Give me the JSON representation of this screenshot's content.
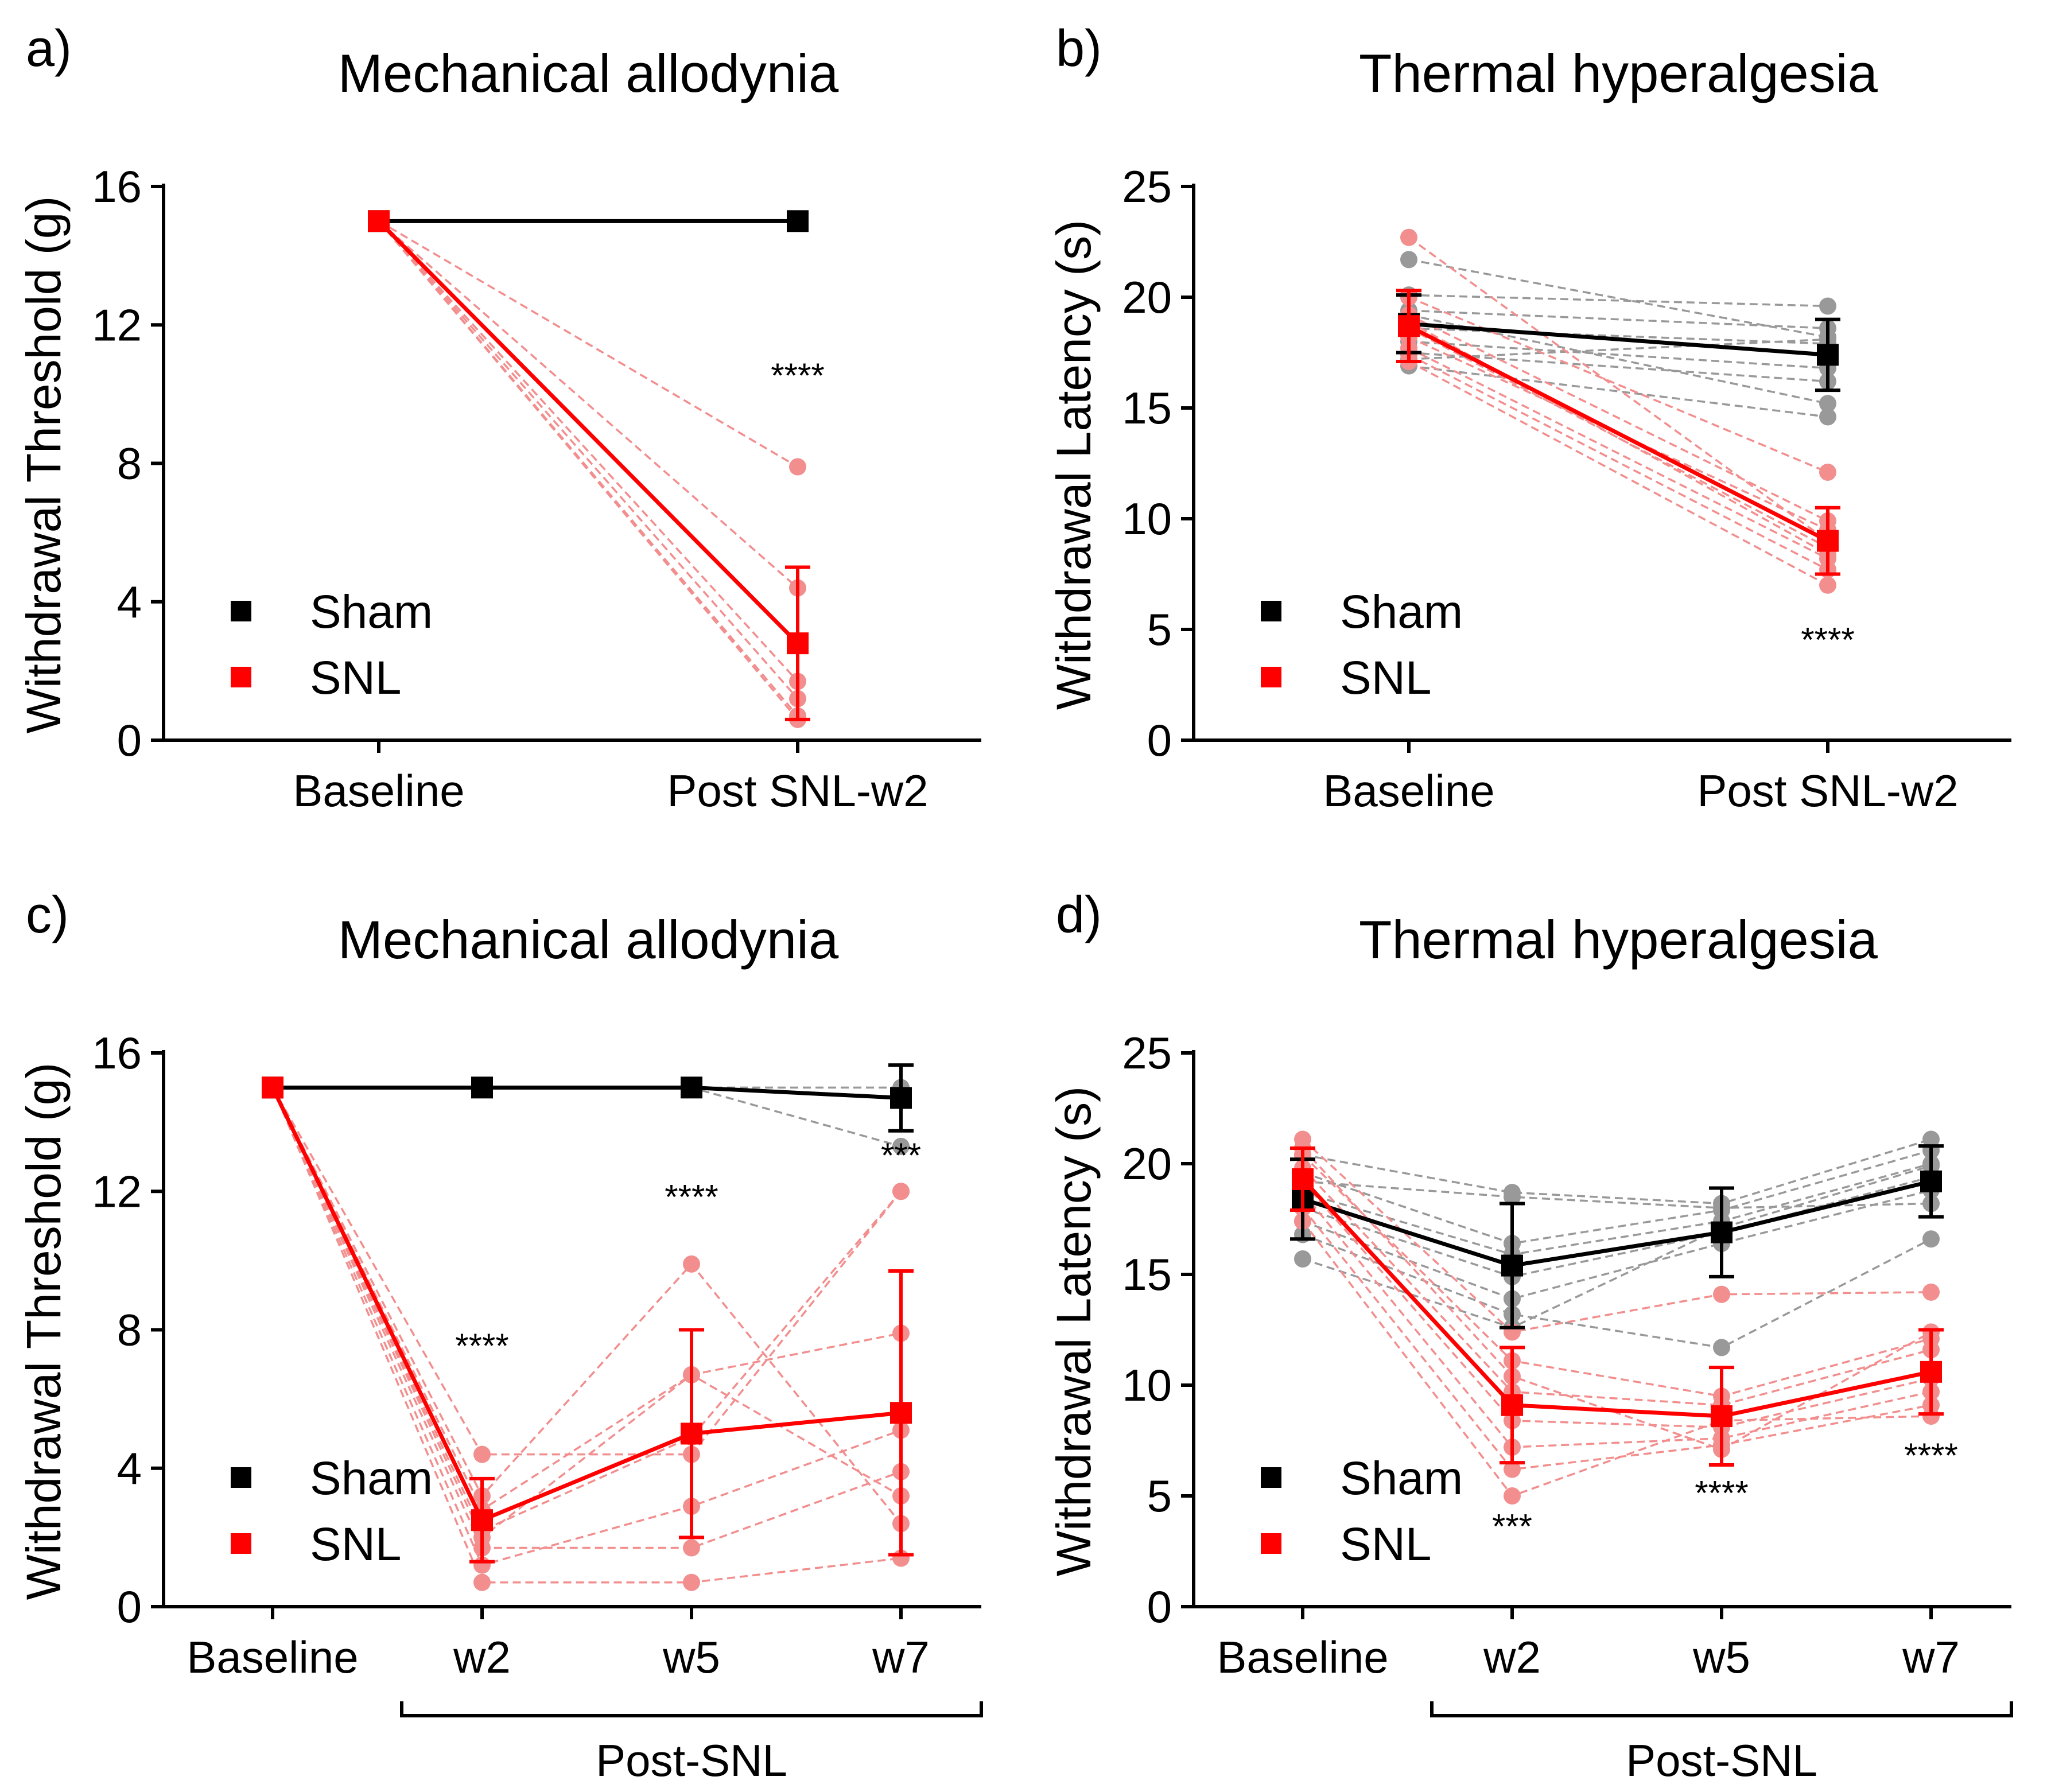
{
  "colors": {
    "sham": "#000000",
    "snl": "#ff0000",
    "sham_individual": "#999999",
    "snl_individual": "#f28e8e",
    "axis": "#000000"
  },
  "chart_data": [
    {
      "panel_label": "a)",
      "type": "line",
      "title": "Mechanical allodynia",
      "xlabel": "",
      "ylabel": "Withdrawal Threshold (g)",
      "categories": [
        "Baseline",
        "Post SNL-w2"
      ],
      "ylim": [
        0,
        16
      ],
      "yticks": [
        0,
        4,
        8,
        12,
        16
      ],
      "bracket_label": "",
      "legend": {
        "position": "bottom-left",
        "entries": [
          "Sham",
          "SNL"
        ]
      },
      "series": [
        {
          "name": "Sham",
          "values": [
            15,
            15
          ],
          "err": [
            0,
            0
          ]
        },
        {
          "name": "SNL",
          "values": [
            15,
            2.8
          ],
          "err": [
            0,
            2.2
          ]
        }
      ],
      "individual": [
        {
          "group": "SNL",
          "lines": [
            [
              15,
              7.9
            ],
            [
              15,
              4.4
            ],
            [
              15,
              2.8
            ],
            [
              15,
              1.7
            ],
            [
              15,
              1.2
            ],
            [
              15,
              0.7
            ],
            [
              15,
              0.6
            ]
          ]
        }
      ],
      "annotations": [
        {
          "x": 1,
          "y": 10.2,
          "text": "****"
        }
      ]
    },
    {
      "panel_label": "b)",
      "type": "line",
      "title": "Thermal hyperalgesia",
      "xlabel": "",
      "ylabel": "Withdrawal Latency (s)",
      "categories": [
        "Baseline",
        "Post SNL-w2"
      ],
      "ylim": [
        0,
        25
      ],
      "yticks": [
        0,
        5,
        10,
        15,
        20,
        25
      ],
      "bracket_label": "",
      "legend": {
        "position": "bottom-left",
        "entries": [
          "Sham",
          "SNL"
        ]
      },
      "series": [
        {
          "name": "Sham",
          "values": [
            18.8,
            17.4
          ],
          "err": [
            1.3,
            1.6
          ]
        },
        {
          "name": "SNL",
          "values": [
            18.7,
            9.0
          ],
          "err": [
            1.6,
            1.5
          ]
        }
      ],
      "individual": [
        {
          "group": "Sham",
          "lines": [
            [
              21.7,
              18.2
            ],
            [
              20.1,
              19.6
            ],
            [
              19.4,
              18.6
            ],
            [
              18.6,
              17.9
            ],
            [
              18.0,
              16.8
            ],
            [
              17.5,
              16.2
            ],
            [
              17.2,
              18.1
            ],
            [
              16.9,
              14.6
            ],
            [
              19.2,
              15.2
            ]
          ]
        },
        {
          "group": "SNL",
          "lines": [
            [
              22.7,
              9.0
            ],
            [
              20.0,
              12.1
            ],
            [
              19.2,
              9.9
            ],
            [
              18.6,
              8.7
            ],
            [
              18.2,
              9.5
            ],
            [
              17.7,
              8.2
            ],
            [
              17.4,
              7.7
            ],
            [
              17.1,
              7.0
            ],
            [
              18.9,
              8.4
            ]
          ]
        }
      ],
      "annotations": [
        {
          "x": 1,
          "y": 4.0,
          "text": "****"
        }
      ]
    },
    {
      "panel_label": "c)",
      "type": "line",
      "title": "Mechanical allodynia",
      "xlabel": "",
      "ylabel": "Withdrawal Threshold (g)",
      "categories": [
        "Baseline",
        "w2",
        "w5",
        "w7"
      ],
      "ylim": [
        0,
        16
      ],
      "yticks": [
        0,
        4,
        8,
        12,
        16
      ],
      "bracket_label": "Post-SNL",
      "legend": {
        "position": "bottom-left",
        "entries": [
          "Sham",
          "SNL"
        ]
      },
      "series": [
        {
          "name": "Sham",
          "values": [
            15,
            15,
            15,
            14.7
          ],
          "err": [
            0,
            0,
            0,
            0.95
          ]
        },
        {
          "name": "SNL",
          "values": [
            15,
            2.5,
            5.0,
            5.6
          ],
          "err": [
            0,
            1.2,
            3.0,
            4.1
          ]
        }
      ],
      "individual": [
        {
          "group": "Sham",
          "lines": [
            [
              15,
              15,
              15,
              15.0
            ],
            [
              15,
              15,
              15,
              14.7
            ],
            [
              15,
              15,
              15,
              13.3
            ]
          ]
        },
        {
          "group": "SNL",
          "lines": [
            [
              15,
              4.4,
              4.4,
              12.0
            ],
            [
              15,
              3.2,
              9.9,
              2.4
            ],
            [
              15,
              2.8,
              6.7,
              7.9
            ],
            [
              15,
              2.2,
              4.9,
              12.0
            ],
            [
              15,
              1.7,
              1.7,
              3.9
            ],
            [
              15,
              1.2,
              2.9,
              5.1
            ],
            [
              15,
              0.7,
              0.7,
              1.4
            ],
            [
              15,
              2.0,
              6.7,
              3.2
            ]
          ]
        }
      ],
      "annotations": [
        {
          "x": 1,
          "y": 7.2,
          "text": "****"
        },
        {
          "x": 2,
          "y": 11.5,
          "text": "****"
        },
        {
          "x": 3,
          "y": 12.7,
          "text": "***"
        }
      ]
    },
    {
      "panel_label": "d)",
      "type": "line",
      "title": "Thermal hyperalgesia",
      "xlabel": "",
      "ylabel": "Withdrawal Latency (s)",
      "categories": [
        "Baseline",
        "w2",
        "w5",
        "w7"
      ],
      "ylim": [
        0,
        25
      ],
      "yticks": [
        0,
        5,
        10,
        15,
        20,
        25
      ],
      "bracket_label": "Post-SNL",
      "legend": {
        "position": "bottom-left",
        "entries": [
          "Sham",
          "SNL"
        ]
      },
      "series": [
        {
          "name": "Sham",
          "values": [
            18.4,
            15.4,
            16.9,
            19.2
          ],
          "err": [
            1.8,
            2.8,
            2.0,
            1.6
          ]
        },
        {
          "name": "SNL",
          "values": [
            19.3,
            9.1,
            8.6,
            10.6
          ],
          "err": [
            1.4,
            2.6,
            2.2,
            1.9
          ]
        }
      ],
      "individual": [
        {
          "group": "Sham",
          "lines": [
            [
              20.4,
              18.7,
              18.2,
              21.1
            ],
            [
              19.6,
              16.4,
              17.9,
              20.6
            ],
            [
              18.7,
              15.9,
              17.4,
              20.0
            ],
            [
              18.0,
              14.9,
              16.9,
              19.4
            ],
            [
              17.4,
              13.9,
              16.4,
              18.8
            ],
            [
              16.8,
              13.2,
              11.7,
              16.6
            ],
            [
              15.7,
              12.6,
              17.1,
              19.9
            ],
            [
              19.2,
              18.5,
              18.0,
              18.2
            ]
          ]
        },
        {
          "group": "SNL",
          "lines": [
            [
              21.1,
              12.4,
              14.1,
              14.2
            ],
            [
              20.4,
              11.1,
              9.5,
              12.1
            ],
            [
              19.8,
              9.7,
              9.1,
              11.6
            ],
            [
              19.2,
              8.4,
              8.1,
              10.3
            ],
            [
              18.7,
              7.2,
              7.6,
              9.7
            ],
            [
              18.0,
              6.2,
              7.3,
              9.1
            ],
            [
              17.4,
              5.0,
              8.4,
              8.6
            ],
            [
              20.7,
              10.4,
              7.1,
              12.4
            ]
          ]
        }
      ],
      "annotations": [
        {
          "x": 1,
          "y": 3.1,
          "text": "***"
        },
        {
          "x": 2,
          "y": 4.6,
          "text": "****"
        },
        {
          "x": 3,
          "y": 6.3,
          "text": "****"
        }
      ]
    }
  ]
}
